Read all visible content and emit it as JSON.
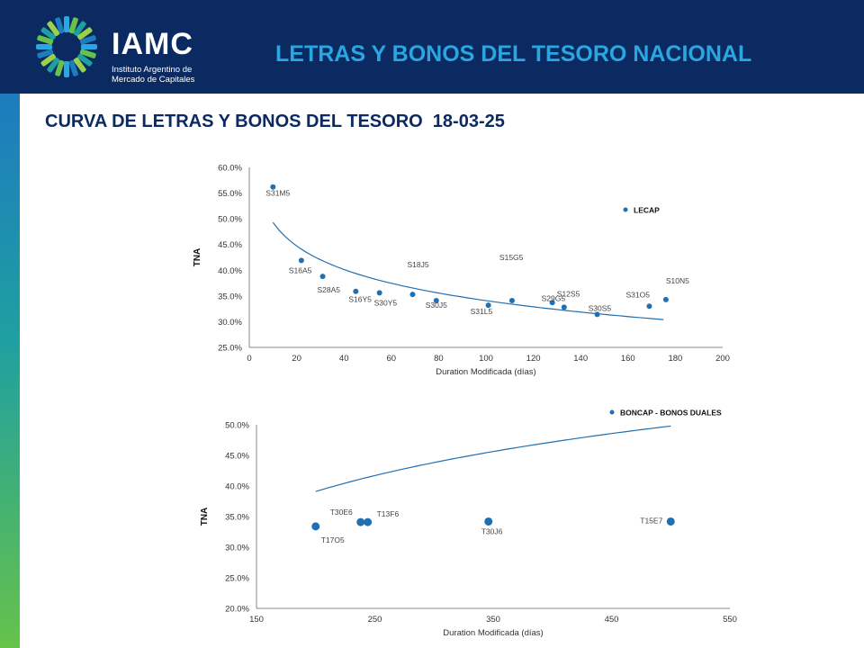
{
  "header": {
    "logo_text": "IAMC",
    "logo_subtitle_line1": "Instituto Argentino de",
    "logo_subtitle_line2": "Mercado de Capitales",
    "title": "LETRAS Y BONOS DEL TESORO NACIONAL"
  },
  "page_title": "CURVA DE LETRAS Y BONOS DEL TESORO  18-03-25",
  "colors": {
    "header_bg": "#0b2a62",
    "accent": "#2aa6e0",
    "series": "#1f6fb2",
    "title": "#0b2a62"
  },
  "chart_data": [
    {
      "type": "scatter",
      "xlabel": "Duration  Modificada (días)",
      "ylabel": "TNA",
      "xlim": [
        0,
        200
      ],
      "ylim": [
        25,
        60
      ],
      "x_ticks": [
        "0",
        "20",
        "40",
        "60",
        "80",
        "100",
        "120",
        "140",
        "160",
        "180",
        "200"
      ],
      "y_ticks": [
        "25.0%",
        "30.0%",
        "35.0%",
        "40.0%",
        "45.0%",
        "50.0%",
        "55.0%",
        "60.0%"
      ],
      "legend": {
        "label": "LECAP",
        "placement": "top-right"
      },
      "series": [
        {
          "name": "LECAP",
          "points": [
            {
              "label": "S31M5",
              "x": 10,
              "y": 56.2
            },
            {
              "label": "S16A5",
              "x": 22,
              "y": 41.9
            },
            {
              "label": "S28A5",
              "x": 31,
              "y": 38.8
            },
            {
              "label": "S16Y5",
              "x": 45,
              "y": 35.9
            },
            {
              "label": "S30Y5",
              "x": 55,
              "y": 35.6
            },
            {
              "label": "S18J5",
              "x": 69,
              "y": 35.3
            },
            {
              "label": "S30J5",
              "x": 79,
              "y": 34.1
            },
            {
              "label": "S31L5",
              "x": 101,
              "y": 33.2
            },
            {
              "label": "S15G5",
              "x": 111,
              "y": 34.1
            },
            {
              "label": "S29G5",
              "x": 128,
              "y": 33.7
            },
            {
              "label": "S12S5",
              "x": 133,
              "y": 32.8
            },
            {
              "label": "S30S5",
              "x": 147,
              "y": 31.4
            },
            {
              "label": "S31O5",
              "x": 169,
              "y": 33.0
            },
            {
              "label": "S10N5",
              "x": 176,
              "y": 34.3
            }
          ]
        }
      ],
      "trendline": {
        "type": "log",
        "x_from": 10,
        "x_to": 175,
        "y_from": 49.3,
        "y_to": 30.4
      }
    },
    {
      "type": "scatter",
      "xlabel": "Duration  Modificada (días)",
      "ylabel": "TNA",
      "xlim": [
        150,
        550
      ],
      "ylim": [
        20,
        50
      ],
      "x_ticks": [
        "150",
        "250",
        "350",
        "450",
        "550"
      ],
      "y_ticks": [
        "20.0%",
        "25.0%",
        "30.0%",
        "35.0%",
        "40.0%",
        "45.0%",
        "50.0%"
      ],
      "legend": {
        "label": "BONCAP - BONOS DUALES",
        "placement": "top-right"
      },
      "series": [
        {
          "name": "BONCAP - BONOS DUALES",
          "points": [
            {
              "label": "T17O5",
              "x": 200,
              "y": 33.4
            },
            {
              "label": "T30E6",
              "x": 238,
              "y": 34.1
            },
            {
              "label": "T13F6",
              "x": 244,
              "y": 34.1
            },
            {
              "label": "T30J6",
              "x": 346,
              "y": 34.2
            },
            {
              "label": "T15E7",
              "x": 500,
              "y": 34.2
            }
          ]
        }
      ],
      "trendline": {
        "type": "log",
        "x_from": 200,
        "x_to": 500,
        "y_from": 39.1,
        "y_to": 49.8
      }
    }
  ]
}
